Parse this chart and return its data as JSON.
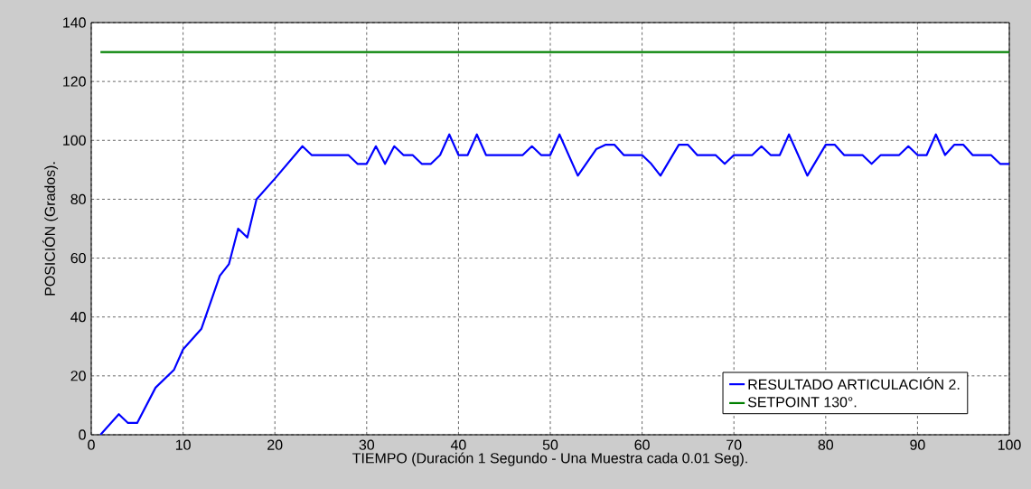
{
  "chart_data": {
    "type": "line",
    "xlabel": "TIEMPO (Duración 1 Segundo - Una Muestra cada 0.01 Seg).",
    "ylabel": "POSICIÓN (Grados).",
    "xlim": [
      0,
      100
    ],
    "ylim": [
      0,
      140
    ],
    "xticks": [
      0,
      10,
      20,
      30,
      40,
      50,
      60,
      70,
      80,
      90,
      100
    ],
    "yticks": [
      0,
      20,
      40,
      60,
      80,
      100,
      120,
      140
    ],
    "grid": true,
    "legend": "bottom right",
    "line_style": "solid",
    "series": [
      {
        "name": "RESULTADO ARTICULACIÓN 2.",
        "color": "#0000ff",
        "x": [
          1,
          3,
          4,
          5,
          7,
          9,
          10,
          12,
          14,
          15,
          16,
          17,
          18,
          20,
          23,
          24,
          28,
          29,
          30,
          31,
          32,
          33,
          34,
          35,
          36,
          37,
          38,
          39,
          40,
          41,
          42,
          43,
          47,
          48,
          49,
          50,
          51,
          53,
          55,
          56,
          57,
          58,
          60,
          61,
          62,
          64,
          65,
          66,
          68,
          69,
          70,
          72,
          73,
          74,
          75,
          76,
          78,
          80,
          81,
          82,
          84,
          85,
          86,
          88,
          89,
          90,
          91,
          92,
          93,
          94,
          95,
          96,
          98,
          99,
          100
        ],
        "values": [
          0,
          7,
          4,
          4,
          16,
          22,
          29,
          36,
          54,
          58,
          70,
          67,
          80,
          87,
          98,
          95,
          95,
          92,
          92,
          98,
          92,
          98,
          95,
          95,
          92,
          92,
          95,
          102,
          95,
          95,
          102,
          95,
          95,
          98,
          95,
          95,
          102,
          88,
          97,
          98.5,
          98.5,
          95,
          95,
          92,
          88,
          98.5,
          98.5,
          95,
          95,
          92,
          95,
          95,
          98,
          95,
          95,
          102,
          88,
          98.5,
          98.5,
          95,
          95,
          92,
          95,
          95,
          98,
          95,
          95,
          102,
          95,
          98.5,
          98.5,
          95,
          95,
          92,
          92
        ]
      },
      {
        "name": "SETPOINT 130°.",
        "color": "#008000",
        "x": [
          1,
          100
        ],
        "values": [
          130,
          130
        ]
      }
    ]
  }
}
